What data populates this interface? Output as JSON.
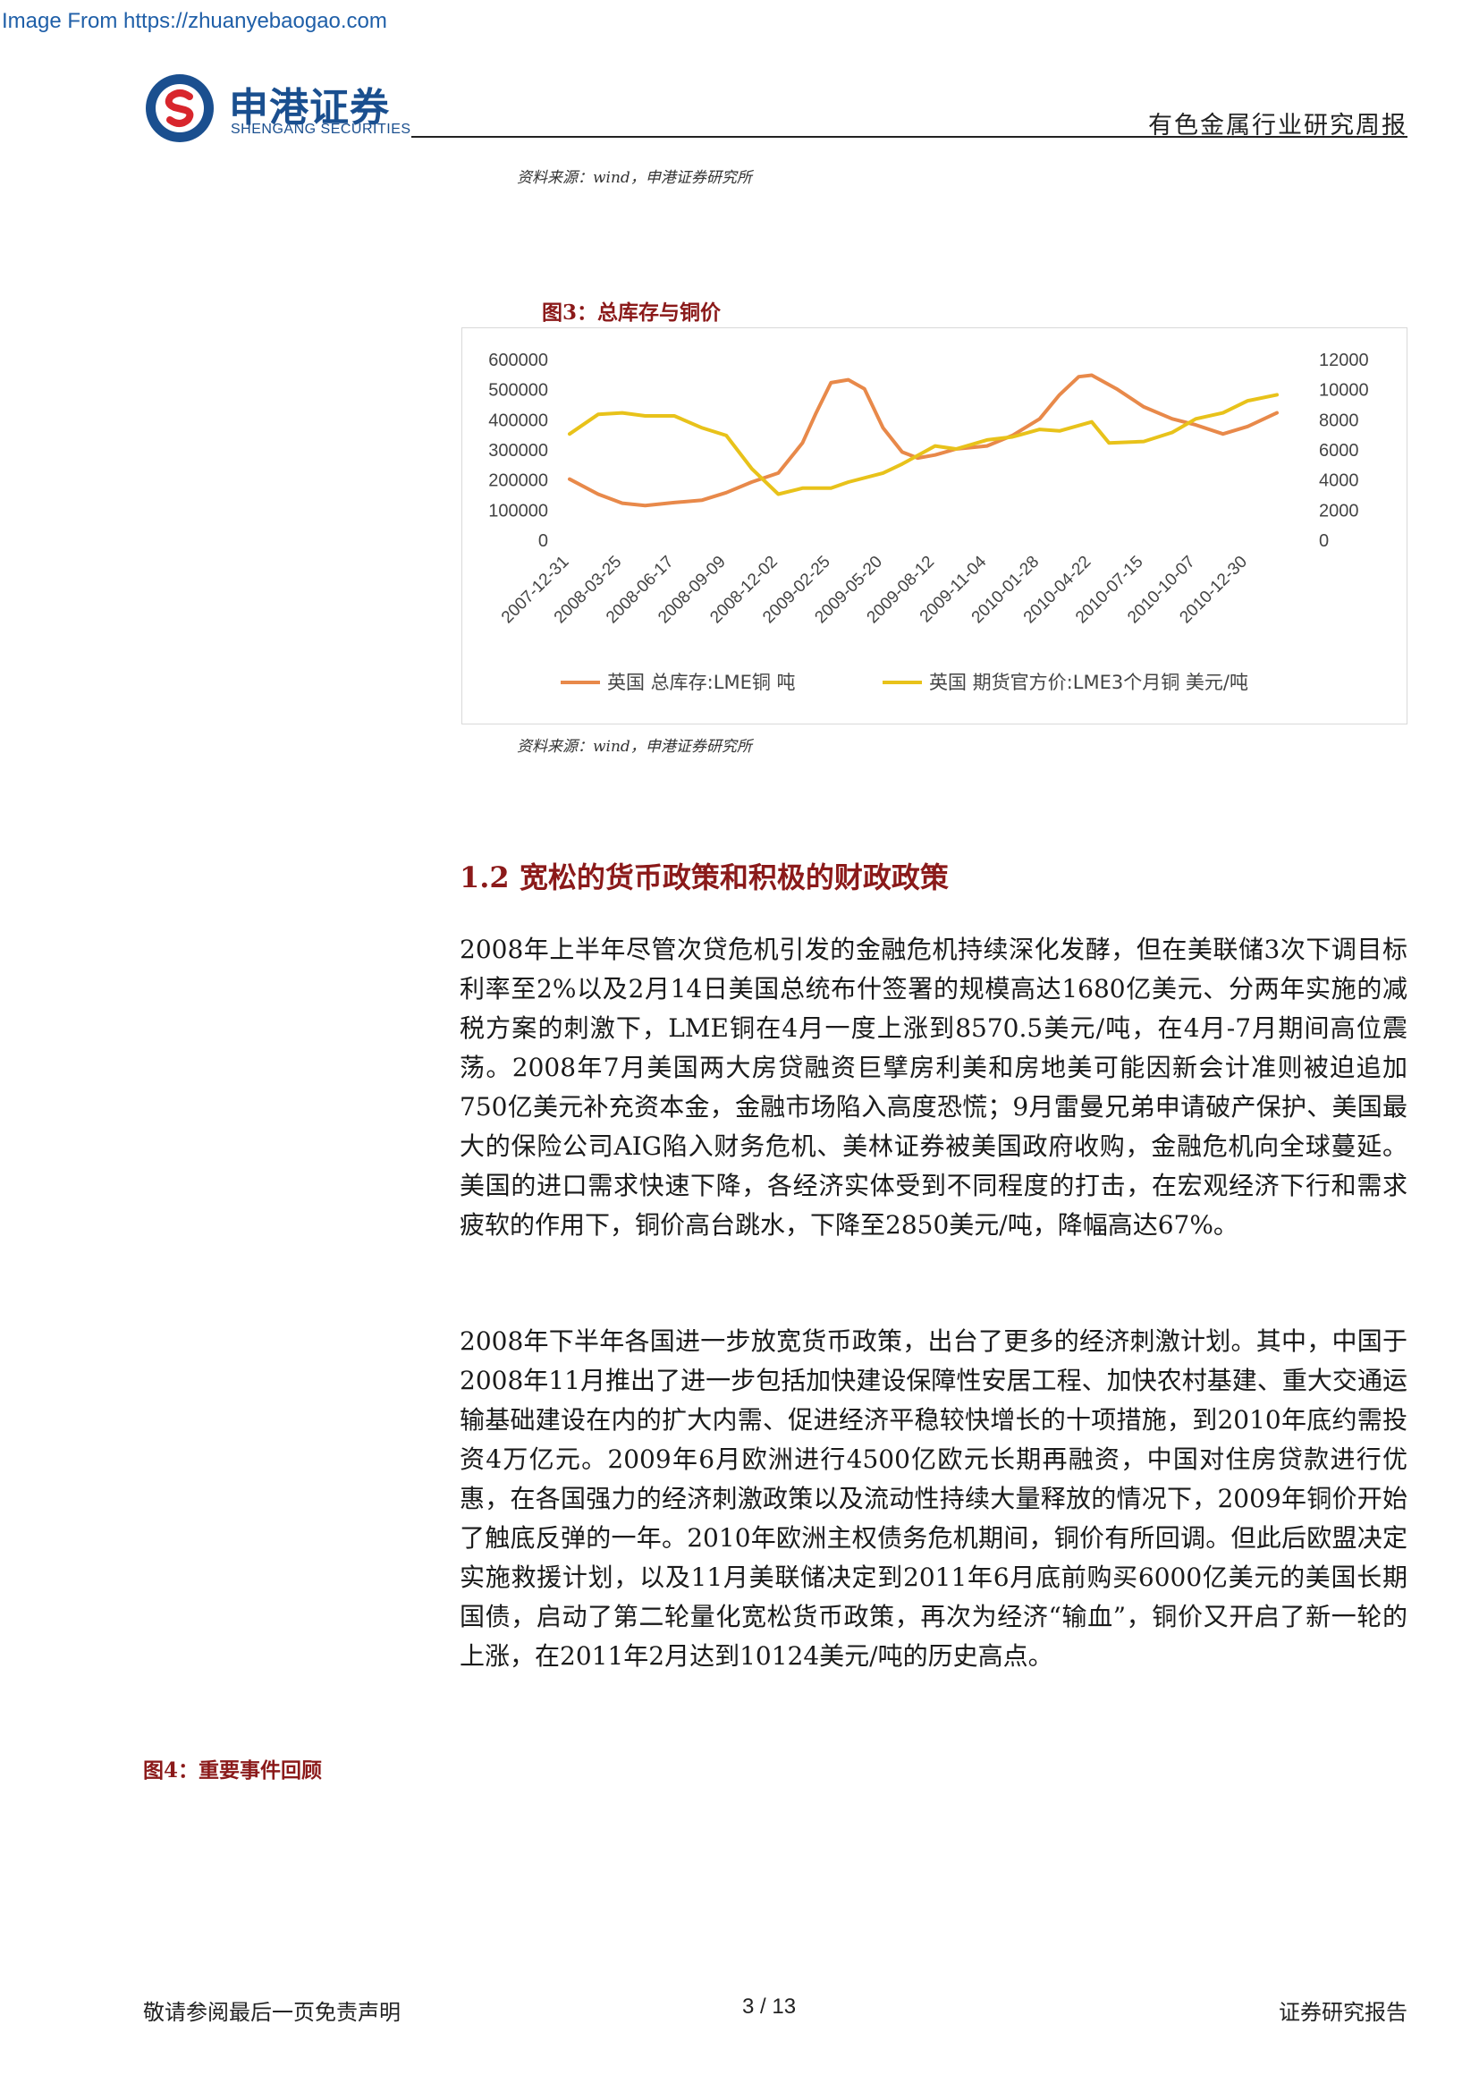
{
  "watermark": "Image From https://zhuanyebaogao.com",
  "brand": {
    "name_cn": "申港证券",
    "name_en": "SHENGANG SECURITIES",
    "color": "#1a4f8f"
  },
  "header": {
    "report_type": "有色金属行业研究周报"
  },
  "top_source": "资料来源：wind，申港证券研究所",
  "figure3": {
    "title": "图3：总库存与铜价",
    "source": "资料来源：wind，申港证券研究所",
    "chart_data": {
      "type": "line",
      "x_tick_labels": [
        "2007-12-31",
        "2008-03-25",
        "2008-06-17",
        "2008-09-09",
        "2008-12-02",
        "2009-02-25",
        "2009-05-20",
        "2009-08-12",
        "2009-11-04",
        "2010-01-28",
        "2010-04-22",
        "2010-07-15",
        "2010-10-07",
        "2010-12-30"
      ],
      "y_left_ticks": [
        "600000",
        "500000",
        "400000",
        "300000",
        "200000",
        "100000",
        "0"
      ],
      "y_right_ticks": [
        "12000",
        "10000",
        "8000",
        "6000",
        "4000",
        "2000",
        "0"
      ],
      "ylim_left": [
        0,
        600000
      ],
      "ylim_right": [
        0,
        12000
      ],
      "grid": false,
      "legend_position": "bottom",
      "series": [
        {
          "name": "英国 总库存:LME铜 吨",
          "axis": "left",
          "color": "#e8894a",
          "x": [
            "2007-12-31",
            "2008-02-15",
            "2008-03-25",
            "2008-05-01",
            "2008-06-17",
            "2008-08-01",
            "2008-09-09",
            "2008-10-20",
            "2008-12-02",
            "2009-01-10",
            "2009-02-01",
            "2009-02-25",
            "2009-03-25",
            "2009-04-20",
            "2009-05-20",
            "2009-06-20",
            "2009-07-15",
            "2009-08-12",
            "2009-09-15",
            "2009-11-04",
            "2009-12-15",
            "2010-01-28",
            "2010-03-01",
            "2010-04-01",
            "2010-04-22",
            "2010-06-01",
            "2010-07-15",
            "2010-08-30",
            "2010-10-07",
            "2010-11-20",
            "2010-12-30",
            "2011-02-15"
          ],
          "values": [
            200000,
            150000,
            120000,
            112000,
            122000,
            130000,
            155000,
            190000,
            220000,
            320000,
            420000,
            520000,
            530000,
            500000,
            370000,
            290000,
            270000,
            280000,
            300000,
            310000,
            345000,
            400000,
            480000,
            540000,
            545000,
            500000,
            440000,
            400000,
            380000,
            350000,
            375000,
            420000
          ]
        },
        {
          "name": "英国 期货官方价:LME3个月铜 美元/吨",
          "axis": "right",
          "color": "#e8c21a",
          "x": [
            "2007-12-31",
            "2008-02-15",
            "2008-03-25",
            "2008-05-01",
            "2008-06-17",
            "2008-08-01",
            "2008-09-09",
            "2008-10-20",
            "2008-12-02",
            "2009-01-10",
            "2009-02-25",
            "2009-03-25",
            "2009-05-20",
            "2009-06-20",
            "2009-08-12",
            "2009-09-15",
            "2009-11-04",
            "2009-12-15",
            "2010-01-28",
            "2010-03-01",
            "2010-04-22",
            "2010-05-20",
            "2010-07-15",
            "2010-08-30",
            "2010-10-07",
            "2010-11-20",
            "2010-12-30",
            "2011-02-15"
          ],
          "values": [
            7000,
            8300,
            8400,
            8200,
            8200,
            7400,
            6900,
            4700,
            3000,
            3400,
            3400,
            3800,
            4400,
            5000,
            6200,
            6000,
            6600,
            6800,
            7300,
            7200,
            7800,
            6400,
            6500,
            7100,
            8000,
            8400,
            9200,
            9600
          ]
        }
      ]
    }
  },
  "section": {
    "heading": "1.2 宽松的货币政策和积极的财政政策",
    "paragraph1": "2008年上半年尽管次贷危机引发的金融危机持续深化发酵，但在美联储3次下调目标利率至2%以及2月14日美国总统布什签署的规模高达1680亿美元、分两年实施的减税方案的刺激下，LME铜在4月一度上涨到8570.5美元/吨，在4月-7月期间高位震荡。2008年7月美国两大房贷融资巨擘房利美和房地美可能因新会计准则被迫追加750亿美元补充资本金，金融市场陷入高度恐慌；9月雷曼兄弟申请破产保护、美国最大的保险公司AIG陷入财务危机、美林证券被美国政府收购，金融危机向全球蔓延。美国的进口需求快速下降，各经济实体受到不同程度的打击，在宏观经济下行和需求疲软的作用下，铜价高台跳水，下降至2850美元/吨，降幅高达67%。",
    "paragraph2": "2008年下半年各国进一步放宽货币政策，出台了更多的经济刺激计划。其中，中国于2008年11月推出了进一步包括加快建设保障性安居工程、加快农村基建、重大交通运输基础建设在内的扩大内需、促进经济平稳较快增长的十项措施，到2010年底约需投资4万亿元。2009年6月欧洲进行4500亿欧元长期再融资，中国对住房贷款进行优惠，在各国强力的经济刺激政策以及流动性持续大量释放的情况下，2009年铜价开始了触底反弹的一年。2010年欧洲主权债务危机期间，铜价有所回调。但此后欧盟决定实施救援计划，以及11月美联储决定到2011年6月底前购买6000亿美元的美国长期国债，启动了第二轮量化宽松货币政策，再次为经济“输血”，铜价又开启了新一轮的上涨，在2011年2月达到10124美元/吨的历史高点。"
  },
  "figure4": {
    "title": "图4：重要事件回顾"
  },
  "footer": {
    "disclaimer": "敬请参阅最后一页免责声明",
    "page": "3 / 13",
    "doc_type": "证券研究报告"
  }
}
